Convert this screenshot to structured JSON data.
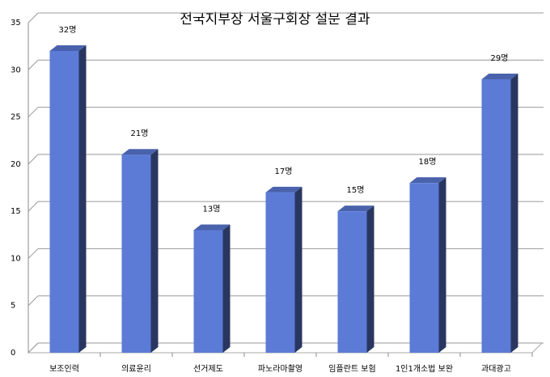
{
  "chart_data": {
    "type": "bar",
    "title": "전국지부장 서울구회장 설문 결과",
    "categories": [
      "보조인력",
      "의료윤리",
      "선거제도",
      "파노라마촬영",
      "임플란트 보험",
      "1인1개소법 보완",
      "과대광고"
    ],
    "values": [
      32,
      21,
      13,
      17,
      15,
      18,
      29
    ],
    "value_labels": [
      "32명",
      "21명",
      "13명",
      "17명",
      "15명",
      "18명",
      "29명"
    ],
    "color": "#5b7bd6",
    "ylim": [
      0,
      35
    ],
    "yticks": [
      0,
      5,
      10,
      15,
      20,
      25,
      30,
      35
    ],
    "grid": true
  }
}
